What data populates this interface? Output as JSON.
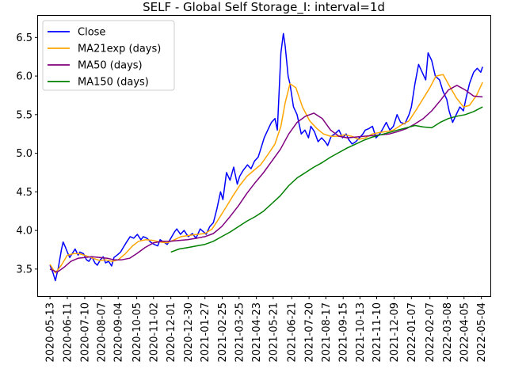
{
  "chart_data": {
    "type": "line",
    "title": "SELF - Global Self Storage_I: interval=1d",
    "xlabel": "",
    "ylabel": "",
    "ylim": [
      3.15,
      6.78
    ],
    "xlim": [
      "2020-04-23",
      "2022-05-19"
    ],
    "y_ticks": [
      3.5,
      4.0,
      4.5,
      5.0,
      5.5,
      6.0,
      6.5
    ],
    "y_tick_labels": [
      "3.5",
      "4.0",
      "4.5",
      "5.0",
      "5.5",
      "6.0",
      "6.5"
    ],
    "x_ticks": [
      "2020-05-13",
      "2020-06-11",
      "2020-07-10",
      "2020-08-07",
      "2020-09-04",
      "2020-10-05",
      "2020-11-02",
      "2020-12-01",
      "2020-12-30",
      "2021-01-27",
      "2021-02-25",
      "2021-03-25",
      "2021-04-23",
      "2021-05-21",
      "2021-06-21",
      "2021-07-20",
      "2021-08-17",
      "2021-09-15",
      "2021-10-13",
      "2021-11-10",
      "2021-12-09",
      "2022-01-07",
      "2022-02-07",
      "2022-03-08",
      "2022-04-05",
      "2022-05-04"
    ],
    "legend_position": "upper-left",
    "grid": false,
    "series": [
      {
        "name": "Close",
        "color": "#0000ff",
        "x": [
          "2020-05-13",
          "2020-05-18",
          "2020-05-22",
          "2020-05-27",
          "2020-06-01",
          "2020-06-04",
          "2020-06-08",
          "2020-06-11",
          "2020-06-15",
          "2020-06-19",
          "2020-06-24",
          "2020-06-29",
          "2020-07-02",
          "2020-07-08",
          "2020-07-13",
          "2020-07-17",
          "2020-07-22",
          "2020-07-27",
          "2020-07-31",
          "2020-08-05",
          "2020-08-10",
          "2020-08-14",
          "2020-08-19",
          "2020-08-24",
          "2020-08-28",
          "2020-09-02",
          "2020-09-08",
          "2020-09-14",
          "2020-09-18",
          "2020-09-24",
          "2020-09-30",
          "2020-10-06",
          "2020-10-12",
          "2020-10-16",
          "2020-10-22",
          "2020-10-28",
          "2020-11-03",
          "2020-11-09",
          "2020-11-13",
          "2020-11-19",
          "2020-11-25",
          "2020-12-01",
          "2020-12-07",
          "2020-12-11",
          "2020-12-17",
          "2020-12-23",
          "2020-12-30",
          "2021-01-06",
          "2021-01-12",
          "2021-01-19",
          "2021-01-25",
          "2021-01-29",
          "2021-02-04",
          "2021-02-10",
          "2021-02-16",
          "2021-02-22",
          "2021-02-26",
          "2021-03-04",
          "2021-03-10",
          "2021-03-16",
          "2021-03-22",
          "2021-03-26",
          "2021-04-01",
          "2021-04-08",
          "2021-04-14",
          "2021-04-20",
          "2021-04-26",
          "2021-04-30",
          "2021-05-06",
          "2021-05-12",
          "2021-05-18",
          "2021-05-24",
          "2021-05-28",
          "2021-06-03",
          "2021-06-07",
          "2021-06-10",
          "2021-06-15",
          "2021-06-18",
          "2021-06-24",
          "2021-06-30",
          "2021-07-07",
          "2021-07-13",
          "2021-07-19",
          "2021-07-23",
          "2021-07-29",
          "2021-08-04",
          "2021-08-10",
          "2021-08-16",
          "2021-08-20",
          "2021-08-26",
          "2021-09-01",
          "2021-09-08",
          "2021-09-14",
          "2021-09-20",
          "2021-09-24",
          "2021-09-30",
          "2021-10-06",
          "2021-10-12",
          "2021-10-18",
          "2021-10-22",
          "2021-10-28",
          "2021-11-03",
          "2021-11-09",
          "2021-11-15",
          "2021-11-19",
          "2021-11-26",
          "2021-12-02",
          "2021-12-08",
          "2021-12-14",
          "2021-12-20",
          "2021-12-27",
          "2022-01-03",
          "2022-01-07",
          "2022-01-13",
          "2022-01-19",
          "2022-01-25",
          "2022-01-31",
          "2022-02-04",
          "2022-02-10",
          "2022-02-16",
          "2022-02-23",
          "2022-03-01",
          "2022-03-07",
          "2022-03-11",
          "2022-03-17",
          "2022-03-23",
          "2022-03-29",
          "2022-04-04",
          "2022-04-08",
          "2022-04-14",
          "2022-04-21",
          "2022-04-27",
          "2022-05-03",
          "2022-05-06"
        ],
        "values": [
          3.55,
          3.45,
          3.35,
          3.52,
          3.75,
          3.85,
          3.78,
          3.72,
          3.65,
          3.7,
          3.76,
          3.68,
          3.72,
          3.7,
          3.62,
          3.6,
          3.66,
          3.58,
          3.55,
          3.62,
          3.66,
          3.58,
          3.6,
          3.54,
          3.65,
          3.68,
          3.72,
          3.8,
          3.85,
          3.92,
          3.9,
          3.95,
          3.88,
          3.92,
          3.9,
          3.85,
          3.82,
          3.8,
          3.88,
          3.85,
          3.82,
          3.9,
          3.98,
          4.02,
          3.95,
          4.0,
          3.92,
          3.96,
          3.9,
          4.02,
          3.98,
          3.95,
          4.05,
          4.1,
          4.28,
          4.5,
          4.4,
          4.75,
          4.65,
          4.82,
          4.6,
          4.7,
          4.78,
          4.85,
          4.8,
          4.9,
          4.95,
          5.05,
          5.2,
          5.3,
          5.4,
          5.45,
          5.3,
          6.3,
          6.55,
          6.4,
          6.0,
          5.9,
          5.6,
          5.5,
          5.25,
          5.3,
          5.2,
          5.35,
          5.28,
          5.15,
          5.2,
          5.15,
          5.1,
          5.22,
          5.25,
          5.3,
          5.2,
          5.25,
          5.18,
          5.12,
          5.15,
          5.2,
          5.25,
          5.3,
          5.32,
          5.35,
          5.2,
          5.25,
          5.3,
          5.4,
          5.3,
          5.35,
          5.5,
          5.4,
          5.38,
          5.5,
          5.6,
          5.9,
          6.15,
          6.05,
          5.95,
          6.3,
          6.2,
          6.0,
          5.95,
          5.8,
          5.7,
          5.55,
          5.4,
          5.5,
          5.6,
          5.55,
          5.7,
          5.9,
          6.05,
          6.1,
          6.05,
          6.12
        ]
      },
      {
        "name": "MA21exp (days)",
        "color": "#ffa500",
        "x": [
          "2020-05-13",
          "2020-05-22",
          "2020-06-01",
          "2020-06-11",
          "2020-06-22",
          "2020-07-01",
          "2020-07-13",
          "2020-07-24",
          "2020-08-04",
          "2020-08-14",
          "2020-08-25",
          "2020-09-04",
          "2020-09-16",
          "2020-09-28",
          "2020-10-08",
          "2020-10-20",
          "2020-11-02",
          "2020-11-13",
          "2020-11-25",
          "2020-12-07",
          "2020-12-18",
          "2021-01-04",
          "2021-01-15",
          "2021-01-27",
          "2021-02-08",
          "2021-02-19",
          "2021-03-03",
          "2021-03-15",
          "2021-03-26",
          "2021-04-07",
          "2021-04-19",
          "2021-04-30",
          "2021-05-12",
          "2021-05-24",
          "2021-06-03",
          "2021-06-10",
          "2021-06-18",
          "2021-06-28",
          "2021-07-09",
          "2021-07-21",
          "2021-08-02",
          "2021-08-13",
          "2021-08-25",
          "2021-09-07",
          "2021-09-17",
          "2021-09-29",
          "2021-10-11",
          "2021-10-22",
          "2021-11-03",
          "2021-11-15",
          "2021-11-26",
          "2021-12-08",
          "2021-12-20",
          "2022-01-03",
          "2022-01-14",
          "2022-01-26",
          "2022-02-07",
          "2022-02-17",
          "2022-03-01",
          "2022-03-11",
          "2022-03-23",
          "2022-04-04",
          "2022-04-14",
          "2022-04-26",
          "2022-05-06"
        ],
        "values": [
          3.56,
          3.45,
          3.55,
          3.68,
          3.7,
          3.7,
          3.67,
          3.64,
          3.61,
          3.62,
          3.6,
          3.62,
          3.7,
          3.8,
          3.86,
          3.88,
          3.87,
          3.85,
          3.84,
          3.88,
          3.92,
          3.94,
          3.95,
          3.96,
          4.02,
          4.15,
          4.3,
          4.45,
          4.58,
          4.7,
          4.78,
          4.85,
          4.98,
          5.12,
          5.35,
          5.65,
          5.9,
          5.85,
          5.6,
          5.42,
          5.32,
          5.25,
          5.22,
          5.22,
          5.24,
          5.22,
          5.18,
          5.2,
          5.25,
          5.27,
          5.28,
          5.3,
          5.36,
          5.42,
          5.55,
          5.7,
          5.85,
          6.0,
          6.02,
          5.88,
          5.72,
          5.6,
          5.62,
          5.75,
          5.92
        ]
      },
      {
        "name": "MA50 (days)",
        "color": "#800080",
        "x": [
          "2020-05-13",
          "2020-05-25",
          "2020-06-05",
          "2020-06-17",
          "2020-06-29",
          "2020-07-10",
          "2020-07-22",
          "2020-08-04",
          "2020-08-17",
          "2020-08-28",
          "2020-09-10",
          "2020-09-23",
          "2020-10-05",
          "2020-10-19",
          "2020-11-02",
          "2020-11-16",
          "2020-11-30",
          "2020-12-14",
          "2020-12-29",
          "2021-01-13",
          "2021-01-27",
          "2021-02-10",
          "2021-02-24",
          "2021-03-10",
          "2021-03-24",
          "2021-04-07",
          "2021-04-21",
          "2021-05-05",
          "2021-05-19",
          "2021-06-02",
          "2021-06-16",
          "2021-06-30",
          "2021-07-14",
          "2021-07-28",
          "2021-08-11",
          "2021-08-25",
          "2021-09-08",
          "2021-09-22",
          "2021-10-06",
          "2021-10-20",
          "2021-11-03",
          "2021-11-17",
          "2021-12-01",
          "2021-12-15",
          "2021-12-30",
          "2022-01-13",
          "2022-01-27",
          "2022-02-10",
          "2022-02-24",
          "2022-03-10",
          "2022-03-24",
          "2022-04-07",
          "2022-04-21",
          "2022-05-06"
        ],
        "values": [
          3.5,
          3.46,
          3.52,
          3.6,
          3.64,
          3.65,
          3.66,
          3.65,
          3.64,
          3.62,
          3.62,
          3.64,
          3.7,
          3.78,
          3.84,
          3.86,
          3.86,
          3.87,
          3.88,
          3.9,
          3.92,
          3.96,
          4.05,
          4.18,
          4.32,
          4.48,
          4.62,
          4.75,
          4.9,
          5.05,
          5.25,
          5.4,
          5.48,
          5.52,
          5.45,
          5.3,
          5.22,
          5.2,
          5.21,
          5.22,
          5.23,
          5.24,
          5.25,
          5.28,
          5.32,
          5.38,
          5.45,
          5.55,
          5.68,
          5.82,
          5.88,
          5.82,
          5.74,
          5.73
        ]
      },
      {
        "name": "MA150 (days)",
        "color": "#008000",
        "x": [
          "2020-12-01",
          "2020-12-15",
          "2020-12-30",
          "2021-01-13",
          "2021-01-27",
          "2021-02-10",
          "2021-02-24",
          "2021-03-10",
          "2021-03-24",
          "2021-04-07",
          "2021-04-21",
          "2021-05-05",
          "2021-05-19",
          "2021-06-02",
          "2021-06-16",
          "2021-06-30",
          "2021-07-14",
          "2021-07-28",
          "2021-08-11",
          "2021-08-25",
          "2021-09-08",
          "2021-09-22",
          "2021-10-06",
          "2021-10-20",
          "2021-11-03",
          "2021-11-17",
          "2021-12-01",
          "2021-12-15",
          "2021-12-30",
          "2022-01-13",
          "2022-01-27",
          "2022-02-10",
          "2022-02-24",
          "2022-03-10",
          "2022-03-24",
          "2022-04-07",
          "2022-04-21",
          "2022-05-06"
        ],
        "values": [
          3.72,
          3.76,
          3.78,
          3.8,
          3.82,
          3.86,
          3.92,
          3.98,
          4.05,
          4.12,
          4.18,
          4.25,
          4.35,
          4.45,
          4.58,
          4.68,
          4.75,
          4.82,
          4.88,
          4.95,
          5.01,
          5.07,
          5.12,
          5.17,
          5.21,
          5.24,
          5.27,
          5.3,
          5.33,
          5.36,
          5.34,
          5.33,
          5.4,
          5.45,
          5.48,
          5.5,
          5.54,
          5.6
        ]
      }
    ]
  }
}
